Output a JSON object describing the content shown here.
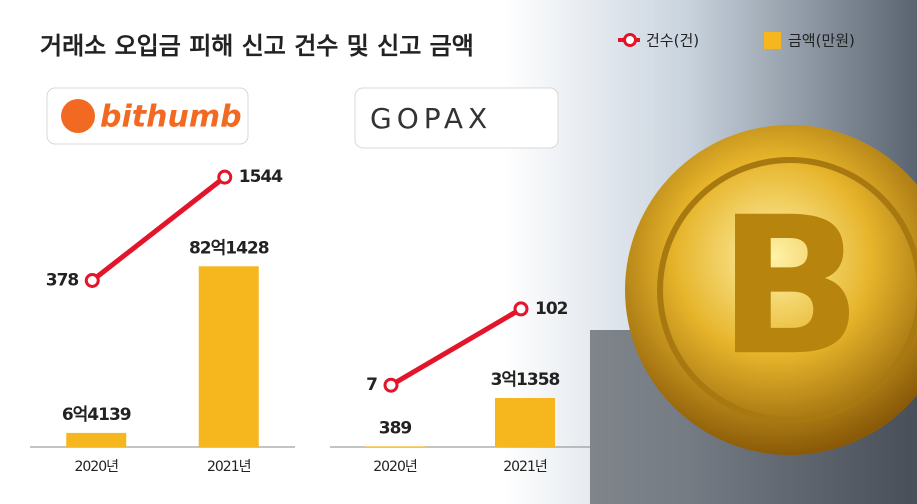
{
  "title": "거래소 오입금 피해 신고 건수 및 신고 금액",
  "chart_data": [
    {
      "type": "bar",
      "title": "bithumb",
      "categories": [
        "2020년",
        "2021년"
      ],
      "series": [
        {
          "name": "금액(만원)",
          "color": "#f6b61e",
          "values": [
            64139,
            821428
          ],
          "value_labels": [
            "6억4139",
            "82억1428"
          ]
        },
        {
          "name": "건수(건)",
          "type": "line",
          "axis": "y2",
          "color": "#e3152b",
          "values": [
            378,
            1544
          ]
        }
      ],
      "ylim": [
        0,
        1350000
      ],
      "y2lim": [
        -1500,
        1850
      ]
    },
    {
      "type": "bar",
      "title": "GOPAX",
      "categories": [
        "2020년",
        "2021년"
      ],
      "series": [
        {
          "name": "금액(만원)",
          "color": "#f6b61e",
          "values": [
            389,
            31358
          ],
          "value_labels": [
            "389",
            "3억1358"
          ]
        },
        {
          "name": "건수(건)",
          "type": "line",
          "axis": "y2",
          "color": "#e3152b",
          "values": [
            7,
            102
          ]
        }
      ],
      "ylim": [
        0,
        190000
      ],
      "y2lim": [
        -70,
        300
      ]
    }
  ]
}
